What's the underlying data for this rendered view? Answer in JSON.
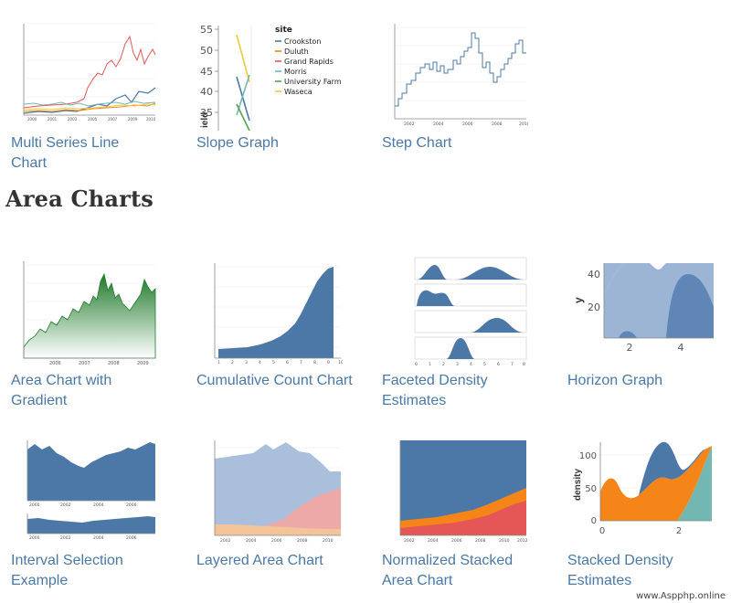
{
  "section": {
    "heading": "Area Charts"
  },
  "gallery_top": [
    {
      "caption": "Multi Series Line Chart"
    },
    {
      "caption": "Slope Graph"
    },
    {
      "caption": "Step Chart"
    }
  ],
  "gallery_area_row1": [
    {
      "caption": "Area Chart with Gradient"
    },
    {
      "caption": "Cumulative Count Chart"
    },
    {
      "caption": "Faceted Density Estimates"
    },
    {
      "caption": "Horizon Graph"
    }
  ],
  "gallery_area_row2": [
    {
      "caption": "Interval Selection Example"
    },
    {
      "caption": "Layered Area Chart"
    },
    {
      "caption": "Normalized Stacked Area Chart"
    },
    {
      "caption": "Stacked Density Estimates"
    }
  ],
  "slope_graph": {
    "legend_title": "site",
    "sites": [
      {
        "name": "Crookston",
        "color": "#4c78a8"
      },
      {
        "name": "Duluth",
        "color": "#f58518"
      },
      {
        "name": "Grand Rapids",
        "color": "#e45756"
      },
      {
        "name": "Morris",
        "color": "#72b7b2"
      },
      {
        "name": "University Farm",
        "color": "#54a24b"
      },
      {
        "name": "Waseca",
        "color": "#eeca3b"
      }
    ],
    "y_ticks": [
      "55",
      "50",
      "45",
      "40",
      "35"
    ],
    "y_axis_label": "ield"
  },
  "horizon_graph": {
    "y_ticks": [
      "40",
      "20"
    ],
    "x_ticks": [
      "2",
      "4"
    ],
    "y_axis_label": "y"
  },
  "stacked_density": {
    "y_ticks": [
      "100",
      "50",
      "0"
    ],
    "x_ticks": [
      "0",
      "2"
    ],
    "y_axis_label": "density"
  },
  "colors": {
    "link": "#4a79a8",
    "blue": "#4c78a8",
    "orange": "#f58518",
    "red": "#e45756",
    "teal": "#72b7b2",
    "green": "#54a24b",
    "yellow": "#eeca3b"
  },
  "watermark": "www.Aspphp.online"
}
